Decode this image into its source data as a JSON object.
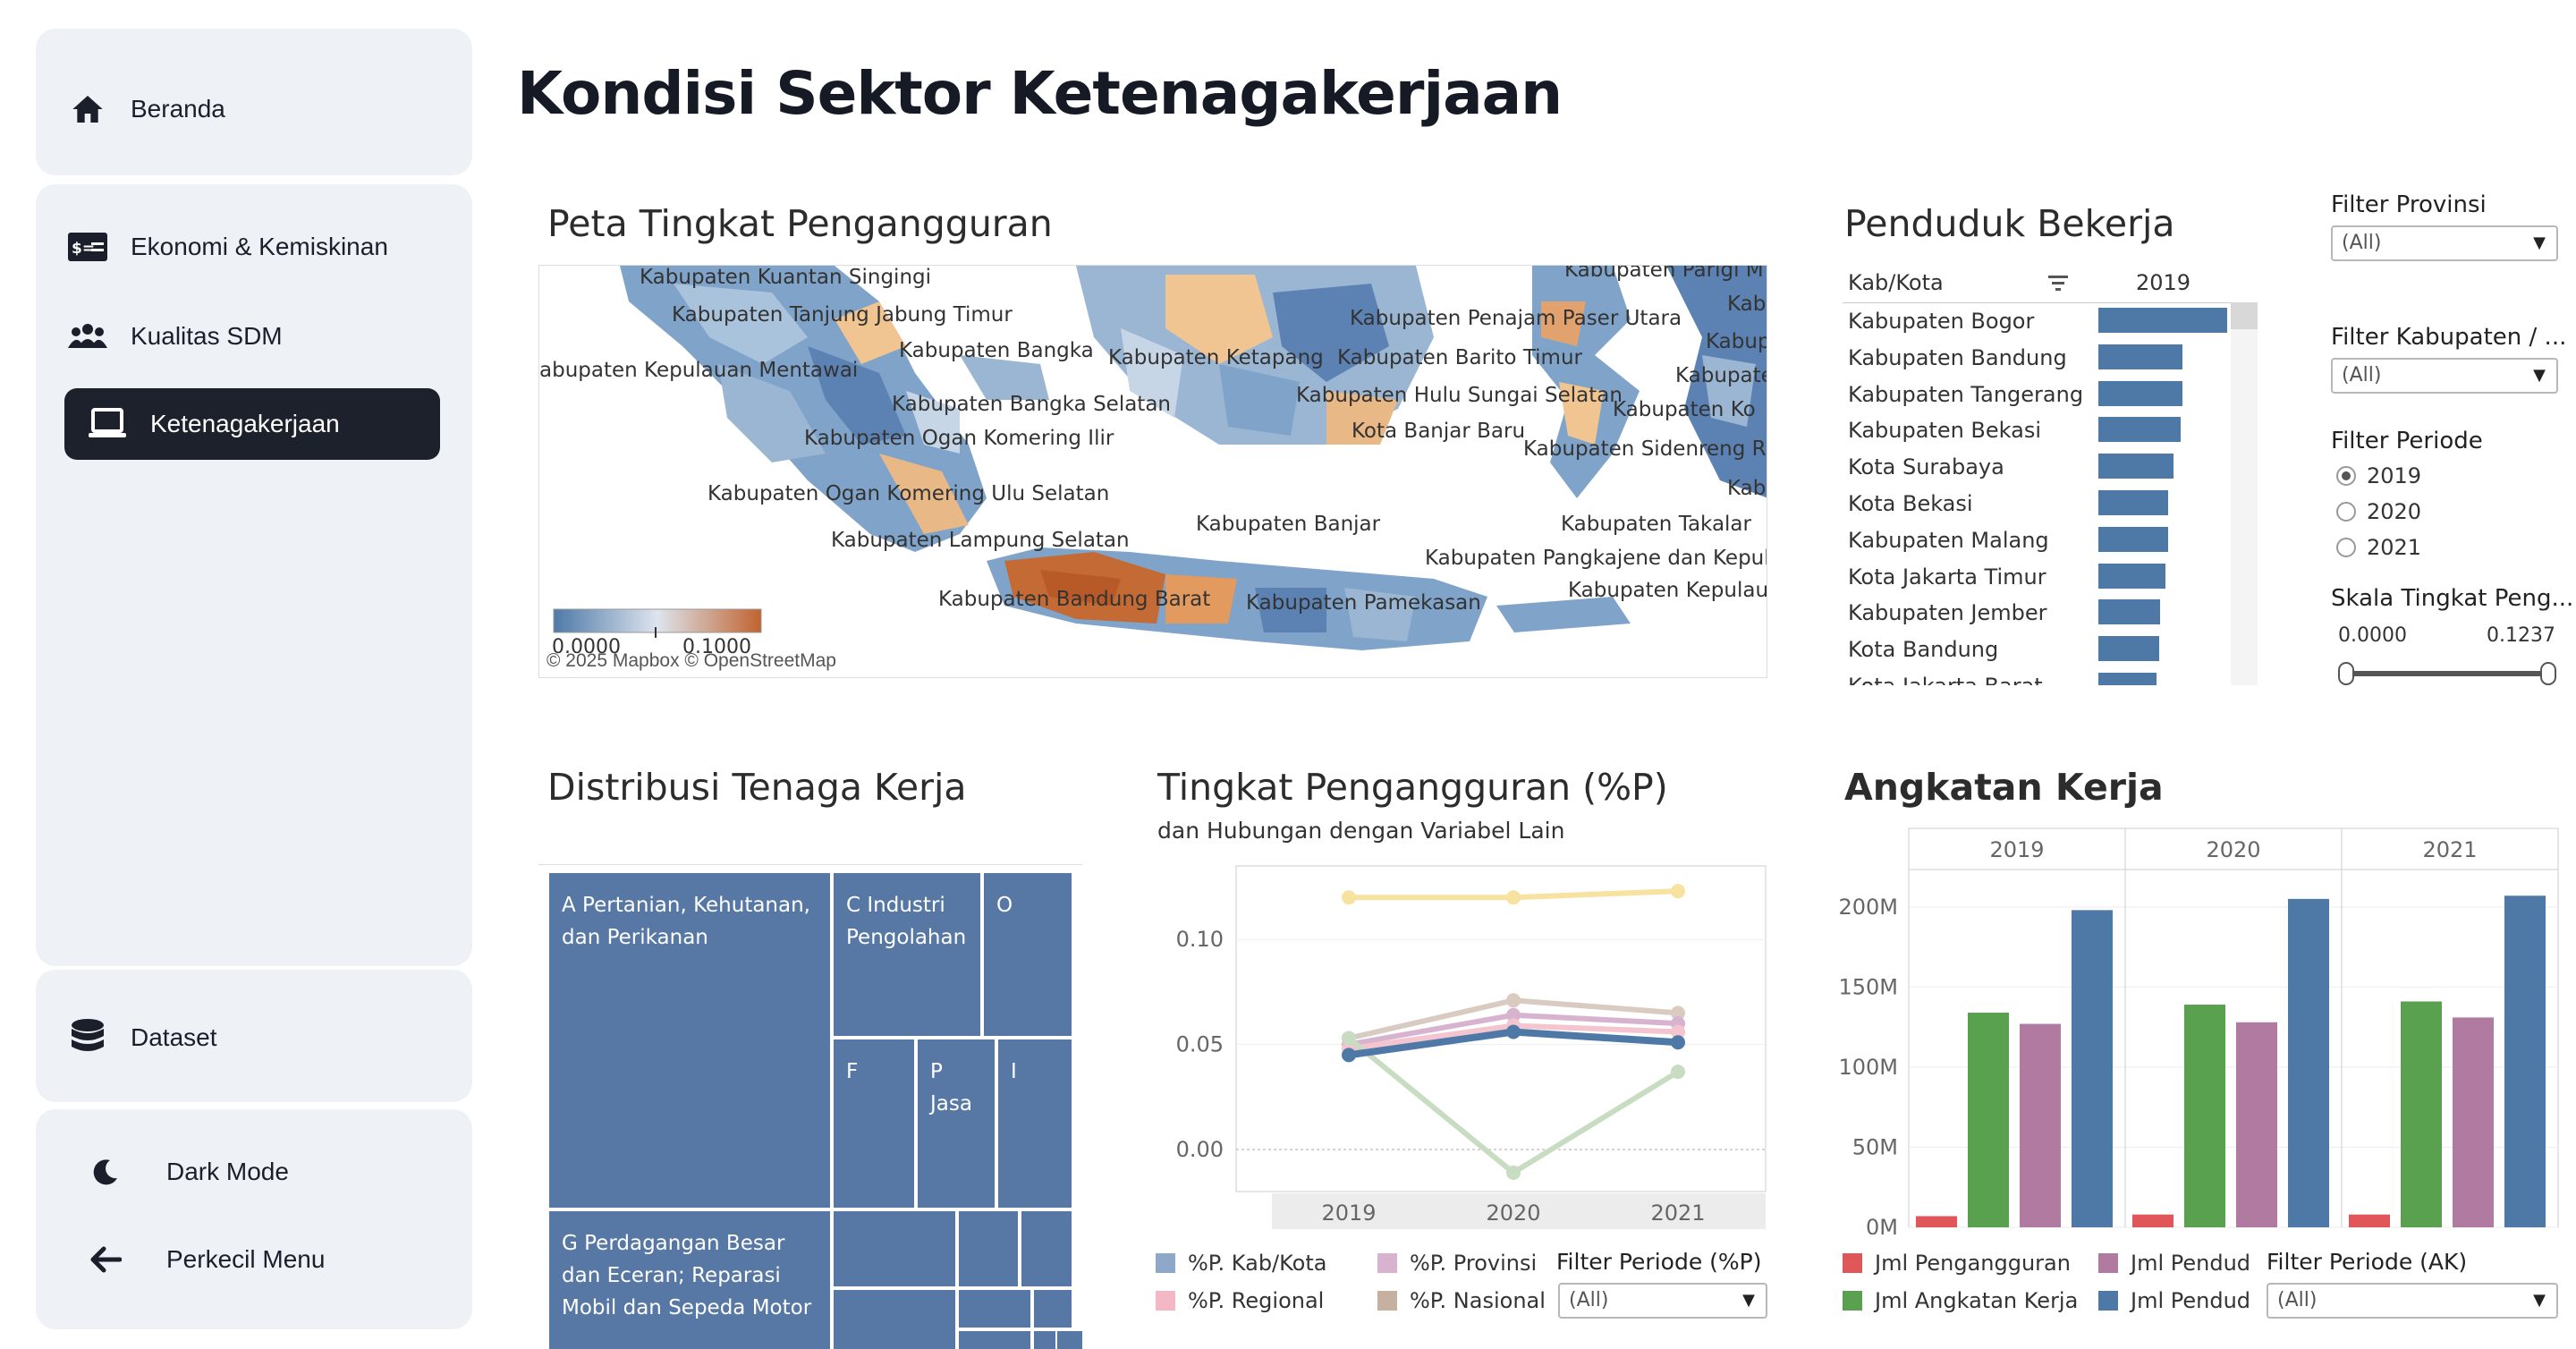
{
  "page": {
    "title": "Kondisi Sektor Ketenagakerjaan"
  },
  "sidebar": {
    "home": "Beranda",
    "items": [
      {
        "label": "Ekonomi & Kemiskinan",
        "icon": "money-icon"
      },
      {
        "label": "Kualitas SDM",
        "icon": "users-icon"
      },
      {
        "label": "Ketenagakerjaan",
        "icon": "laptop-icon"
      }
    ],
    "dataset": "Dataset",
    "dark_mode": "Dark Mode",
    "collapse": "Perkecil Menu"
  },
  "map": {
    "title": "Peta Tingkat Pengangguran",
    "labels": [
      "Kabupaten Kuantan Singingi",
      "Kabupaten Tanjung Jabung Timur",
      "Kabupaten Bangka",
      "abupaten Kepulauan Mentawai",
      "Kabupaten Bangka Selatan",
      "Kabupaten Ogan Komering Ilir",
      "Kabupaten Ogan Komering Ulu Selatan",
      "Kabupaten Lampung Selatan",
      "Kabupaten Bandung Barat",
      "Kabupaten Ketapang",
      "Kabupaten Penajam Paser Utara",
      "Kabupaten Barito Timur",
      "Kabupaten Hulu Sungai Selatan",
      "Kota Banjar Baru",
      "Kabupaten Banjar",
      "Kabupaten Pamekasan",
      "Kabupaten Pangkajene dan Kepul",
      "Kabupaten Takalar",
      "Kabupaten Kepulau",
      "Kabupaten Sidenreng R",
      "Kabupaten Ko",
      "Kabupaten Parigi M",
      "Kab",
      "Kabup",
      "Kabupate",
      "Kabı"
    ],
    "legend_min": "0.0000",
    "legend_max": "0.1000",
    "attribution": "© 2025 Mapbox  © OpenStreetMap"
  },
  "penduduk": {
    "title": "Penduduk Bekerja",
    "col_header": "Kab/Kota",
    "year": "2019",
    "rows": [
      {
        "name": "Kabupaten Bogor",
        "value": 1.0
      },
      {
        "name": "Kabupaten Bandung",
        "value": 0.65
      },
      {
        "name": "Kabupaten Tangerang",
        "value": 0.65
      },
      {
        "name": "Kabupaten Bekasi",
        "value": 0.64
      },
      {
        "name": "Kota Surabaya",
        "value": 0.58
      },
      {
        "name": "Kota Bekasi",
        "value": 0.54
      },
      {
        "name": "Kabupaten Malang",
        "value": 0.54
      },
      {
        "name": "Kota Jakarta Timur",
        "value": 0.52
      },
      {
        "name": "Kabupaten Jember",
        "value": 0.48
      },
      {
        "name": "Kota Bandung",
        "value": 0.47
      },
      {
        "name": "Kota Jakarta Barat",
        "value": 0.45
      }
    ]
  },
  "filters": {
    "provinsi_label": "Filter Provinsi",
    "provinsi_value": "(All)",
    "kabupaten_label": "Filter Kabupaten / ...",
    "kabupaten_value": "(All)",
    "periode_label": "Filter Periode",
    "periode_options": [
      "2019",
      "2020",
      "2021"
    ],
    "periode_selected": "2019",
    "skala_label": "Skala Tingkat Peng...",
    "skala_min": "0.0000",
    "skala_max": "0.1237"
  },
  "distribusi": {
    "title": "Distribusi Tenaga Kerja",
    "cells": [
      "A Pertanian, Kehutanan, dan Perikanan",
      "C Industri Pengolahan",
      "O",
      "F",
      "P Jasa",
      "I",
      "G Perdagangan Besar dan Eceran; Reparasi Mobil dan Sepeda Motor"
    ]
  },
  "tingkat": {
    "title": "Tingkat Pengangguran (%P)",
    "subtitle": "dan Hubungan dengan Variabel Lain",
    "filter_label": "Filter Periode (%P)",
    "filter_value": "(All)",
    "legend": [
      {
        "name": "%P. Kab/Kota",
        "color": "#8fa7c9"
      },
      {
        "name": "%P. Provinsi",
        "color": "#d8b3cf"
      },
      {
        "name": "%P. Regional",
        "color": "#f4b8c4"
      },
      {
        "name": "%P. Nasional",
        "color": "#c6b0a0"
      }
    ]
  },
  "angkatan": {
    "title": "Angkatan Kerja",
    "filter_label": "Filter Periode (AK)",
    "filter_value": "(All)",
    "legend": [
      {
        "name": "Jml Pengangguran",
        "color": "#e15759"
      },
      {
        "name": "Jml Pendud",
        "color": "#b07aa1"
      },
      {
        "name": "Jml Angkatan Kerja",
        "color": "#59a14f"
      },
      {
        "name": "Jml Pendud",
        "color": "#4e79a7"
      }
    ]
  },
  "chart_data": [
    {
      "type": "line",
      "title": "Tingkat Pengangguran (%P)",
      "x": [
        "2019",
        "2020",
        "2021"
      ],
      "ylim": [
        -0.02,
        0.135
      ],
      "yticks": [
        "0.10",
        "0.05",
        "0.00"
      ],
      "series": [
        {
          "color": "#f7e2a0",
          "values": [
            0.12,
            0.12,
            0.123
          ]
        },
        {
          "color": "#d9cbc2",
          "values": [
            0.053,
            0.071,
            0.065
          ]
        },
        {
          "color": "#d8b3cf",
          "values": [
            0.05,
            0.064,
            0.06
          ]
        },
        {
          "color": "#f4c4cf",
          "values": [
            0.048,
            0.059,
            0.056
          ]
        },
        {
          "color": "#c7dcc1",
          "values": [
            0.053,
            -0.011,
            0.037
          ]
        },
        {
          "color": "#4e79a7",
          "values": [
            0.045,
            0.056,
            0.051
          ]
        }
      ]
    },
    {
      "type": "bar",
      "title": "Angkatan Kerja",
      "panels": [
        "2019",
        "2020",
        "2021"
      ],
      "ylim": [
        0,
        220
      ],
      "yticks": [
        "200M",
        "150M",
        "100M",
        "50M",
        "0M"
      ],
      "series": [
        {
          "name": "Jml Pengangguran",
          "color": "#e15759",
          "values": [
            7,
            8,
            8
          ]
        },
        {
          "name": "Jml Angkatan Kerja",
          "color": "#59a14f",
          "values": [
            134,
            139,
            141
          ]
        },
        {
          "name": "Jml Pendud",
          "color": "#b07aa1",
          "values": [
            127,
            128,
            131
          ]
        },
        {
          "name": "Jml Pendud",
          "color": "#4e79a7",
          "values": [
            198,
            205,
            207
          ]
        }
      ]
    }
  ]
}
